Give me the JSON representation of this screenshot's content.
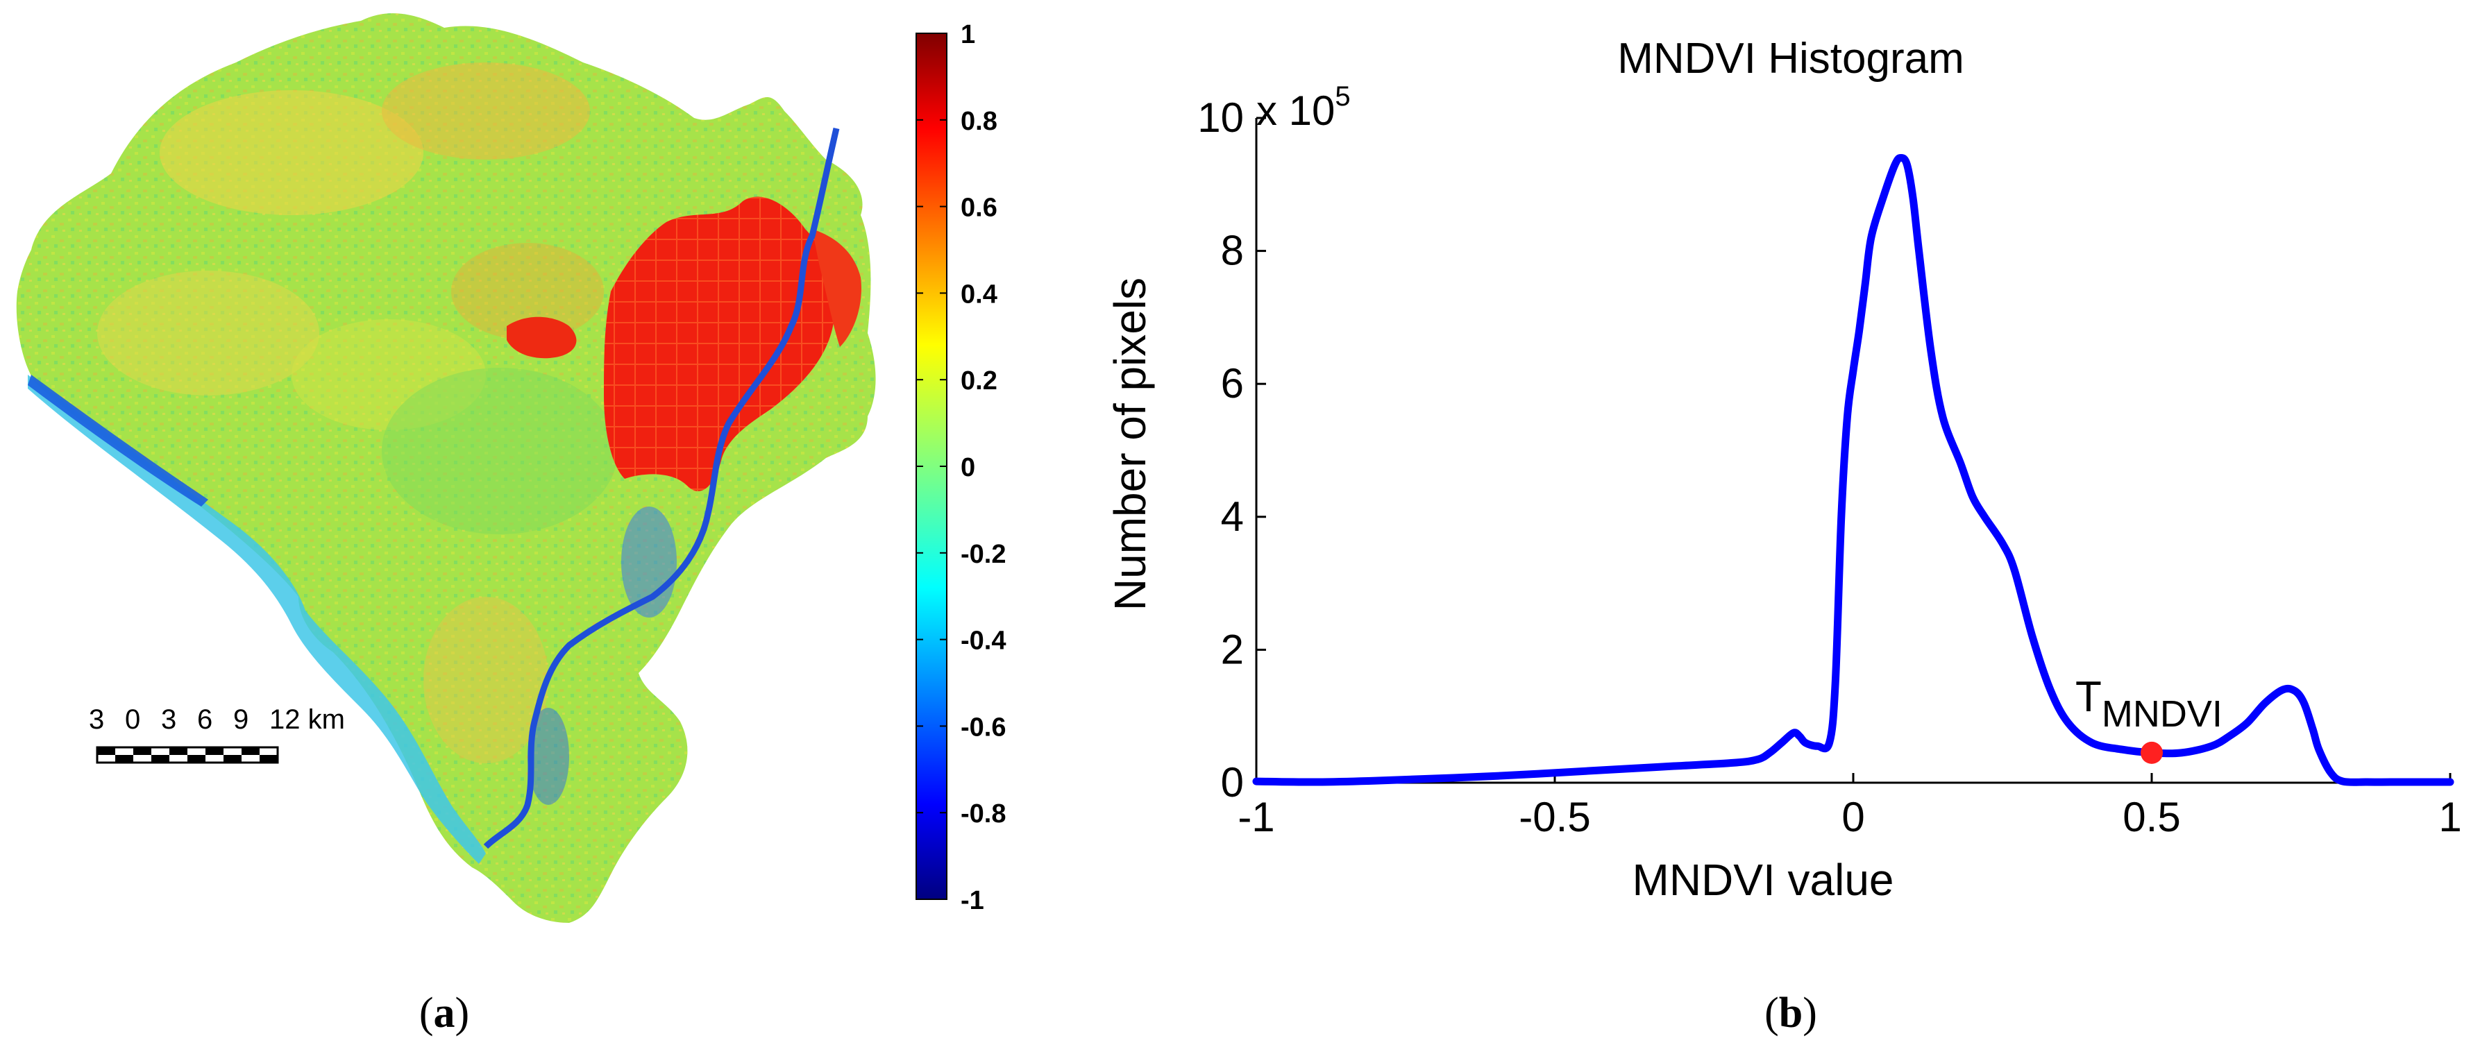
{
  "panel_a": {
    "caption_open": "(",
    "caption_letter": "a",
    "caption_close": ")",
    "colorbar": {
      "ticks": [
        "1",
        "0.8",
        "0.6",
        "0.4",
        "0.2",
        "0",
        "-0.2",
        "-0.4",
        "-0.6",
        "-0.8",
        "-1"
      ],
      "colormap": "jet"
    },
    "scale_bar": {
      "labels": [
        "3",
        "0",
        "3",
        "6",
        "9",
        "12 km"
      ]
    }
  },
  "panel_b": {
    "caption_open": "(",
    "caption_letter": "b",
    "caption_close": ")"
  },
  "chart_data": {
    "type": "line",
    "title": "MNDVI Histogram",
    "xlabel": "MNDVI value",
    "ylabel": "Number of pixels",
    "y_exponent_base": "x 10",
    "y_exponent_power": "5",
    "xlim": [
      -1,
      1
    ],
    "ylim": [
      0,
      10
    ],
    "xticks": [
      "-1",
      "-0.5",
      "0",
      "0.5",
      "1"
    ],
    "yticks": [
      "0",
      "2",
      "4",
      "6",
      "8",
      "10"
    ],
    "series": [
      {
        "name": "MNDVI histogram",
        "color": "#0000ff",
        "x": [
          -1.0,
          -0.9,
          -0.8,
          -0.6,
          -0.4,
          -0.3,
          -0.2,
          -0.16,
          -0.14,
          -0.12,
          -0.1,
          -0.09,
          -0.08,
          -0.06,
          -0.04,
          -0.03,
          -0.02,
          -0.01,
          0.0,
          0.01,
          0.02,
          0.03,
          0.05,
          0.07,
          0.08,
          0.09,
          0.1,
          0.11,
          0.13,
          0.15,
          0.18,
          0.2,
          0.22,
          0.25,
          0.27,
          0.3,
          0.33,
          0.36,
          0.4,
          0.45,
          0.5,
          0.55,
          0.6,
          0.63,
          0.66,
          0.69,
          0.72,
          0.74,
          0.755,
          0.77,
          0.78,
          0.8,
          0.82,
          0.86,
          0.9,
          0.95,
          1.0
        ],
        "y": [
          0.02,
          0.01,
          0.03,
          0.1,
          0.2,
          0.25,
          0.3,
          0.35,
          0.45,
          0.6,
          0.75,
          0.7,
          0.6,
          0.55,
          0.6,
          1.5,
          4.0,
          5.5,
          6.2,
          6.8,
          7.5,
          8.2,
          8.8,
          9.3,
          9.4,
          9.3,
          8.8,
          8.0,
          6.5,
          5.5,
          4.8,
          4.3,
          4.0,
          3.6,
          3.2,
          2.2,
          1.4,
          0.9,
          0.6,
          0.5,
          0.45,
          0.45,
          0.55,
          0.7,
          0.9,
          1.2,
          1.4,
          1.38,
          1.2,
          0.8,
          0.5,
          0.15,
          0.02,
          0.01,
          0.01,
          0.01,
          0.01
        ]
      }
    ],
    "threshold": {
      "label_main": "T",
      "label_sub": "MNDVI",
      "x": 0.5,
      "y": 0.45,
      "color": "#ff2020"
    }
  }
}
